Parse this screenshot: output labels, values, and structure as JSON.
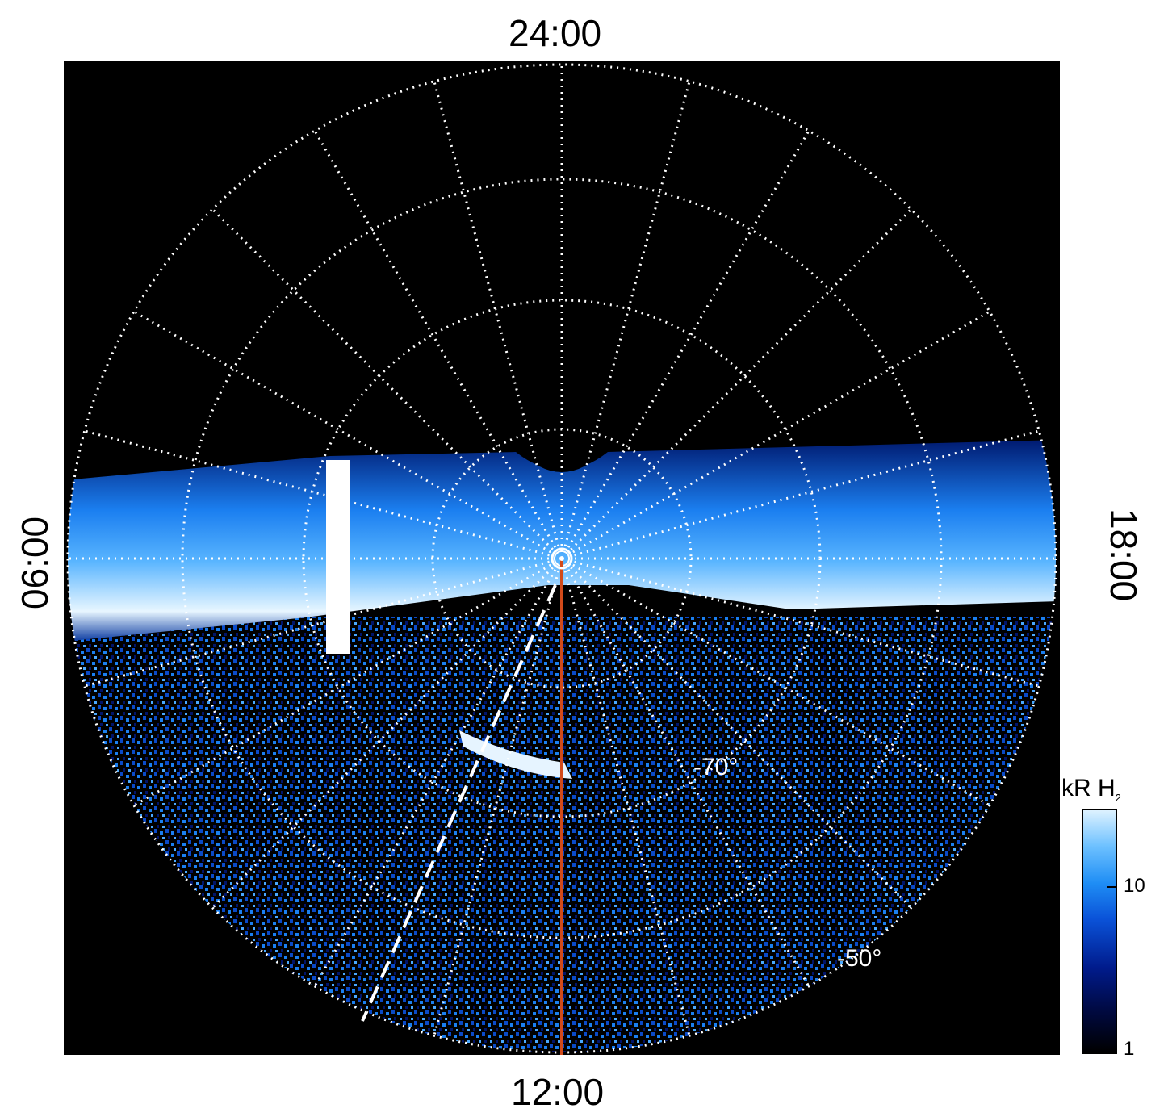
{
  "local_time_labels": {
    "top": "24:00",
    "bottom": "12:00",
    "left": "06:00",
    "right": "18:00"
  },
  "latitude_labels": [
    {
      "text": "-70°"
    },
    {
      "text": "-50°"
    }
  ],
  "colorbar": {
    "title": "kR H",
    "title_subscript": "2",
    "scale": "log",
    "ticks": [
      "10",
      "1"
    ],
    "colors": [
      "#000000",
      "#000a44",
      "#001b8c",
      "#0a52d8",
      "#1f8ef5",
      "#6cc0ff",
      "#ddf2ff"
    ]
  },
  "overlay_colors": {
    "grid": "#ffffff",
    "meridian_line": "#d24a1a",
    "background": "#000000"
  }
}
